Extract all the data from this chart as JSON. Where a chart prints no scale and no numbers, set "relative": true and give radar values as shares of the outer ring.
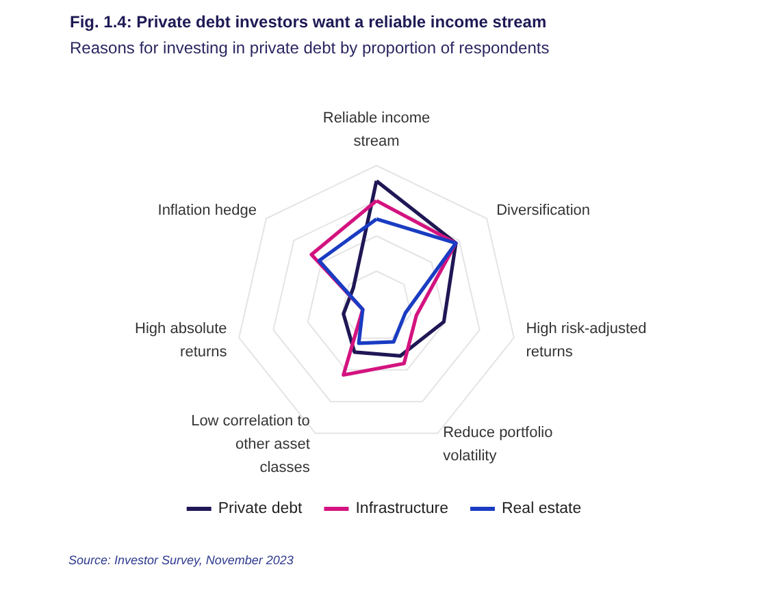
{
  "chart_data": {
    "type": "radar",
    "title": "Fig. 1.4: Private debt investors want a reliable income stream",
    "subtitle": "Reasons for investing in private debt by proportion of respondents",
    "categories": [
      "Reliable income stream",
      "Diversification",
      "High risk-adjusted returns",
      "Reduce portfolio volatility",
      "Low correlation to other asset classes",
      "High absolute returns",
      "Inflation hedge"
    ],
    "relative": true,
    "series": [
      {
        "name": "Private debt",
        "color": "#1f1755",
        "values": [
          0.89,
          0.72,
          0.49,
          0.39,
          0.36,
          0.24,
          0.21
        ]
      },
      {
        "name": "Infrastructure",
        "color": "#d3137f",
        "values": [
          0.75,
          0.72,
          0.29,
          0.45,
          0.54,
          0.1,
          0.59
        ]
      },
      {
        "name": "Real estate",
        "color": "#1a3cc2",
        "values": [
          0.62,
          0.72,
          0.21,
          0.28,
          0.29,
          0.1,
          0.52
        ]
      }
    ],
    "grid": true,
    "legend": "bottom",
    "marker": "none",
    "annotations": [
      "Source: Investor Survey, November 2023"
    ]
  }
}
